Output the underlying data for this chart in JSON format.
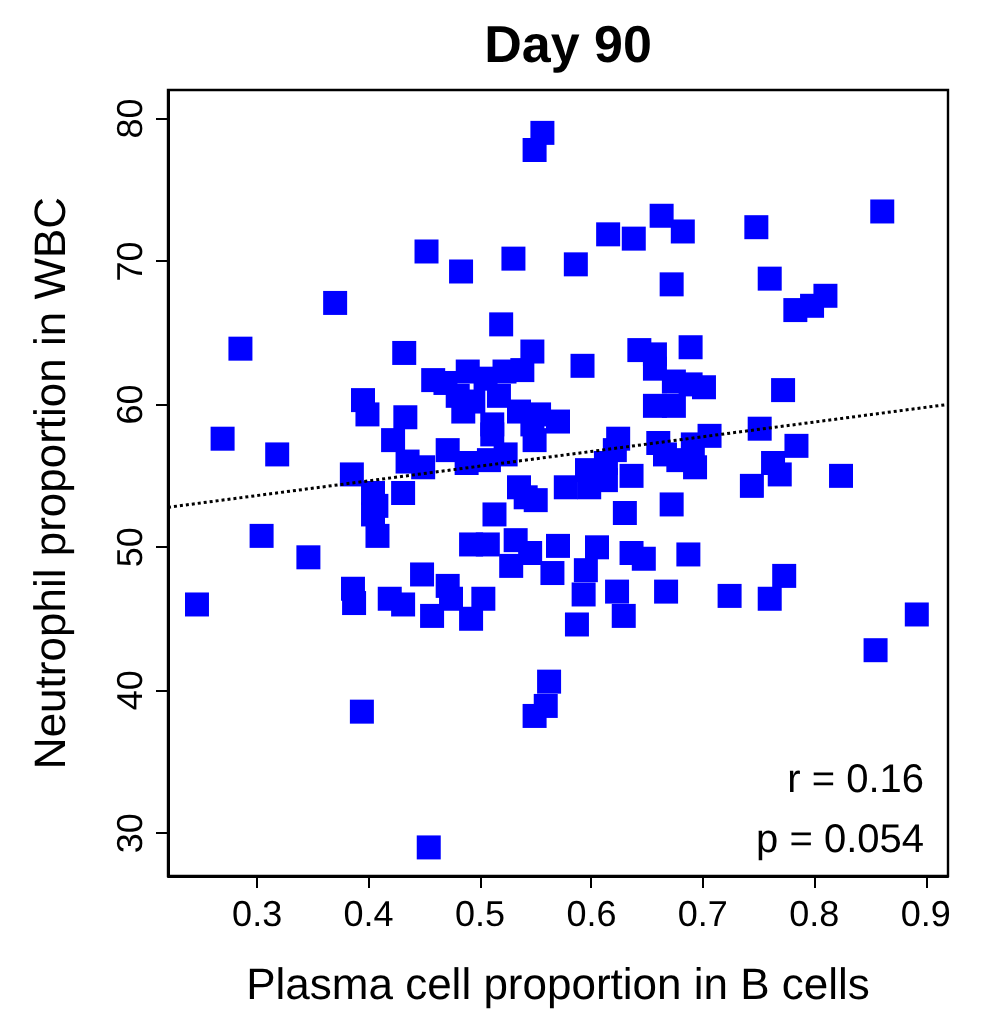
{
  "chart_data": {
    "type": "scatter",
    "title": "Day 90",
    "xlabel": "Plasma cell proportion in B cells",
    "ylabel": "Neutrophil proportion in WBC",
    "xlim": [
      0.22,
      0.92
    ],
    "xticks": [
      0.3,
      0.4,
      0.5,
      0.6,
      0.7,
      0.8,
      0.9
    ],
    "ylim": [
      27,
      82
    ],
    "yticks": [
      30,
      40,
      50,
      60,
      70,
      80
    ],
    "annotations": [
      "r = 0.16",
      "p = 0.054"
    ],
    "series": [
      {
        "marker": "square",
        "color": "#0000ff",
        "x": [
          0.246,
          0.269,
          0.285,
          0.304,
          0.318,
          0.346,
          0.37,
          0.385,
          0.386,
          0.387,
          0.394,
          0.395,
          0.399,
          0.404,
          0.407,
          0.404,
          0.408,
          0.419,
          0.422,
          0.431,
          0.431,
          0.432,
          0.433,
          0.435,
          0.448,
          0.449,
          0.452,
          0.454,
          0.457,
          0.458,
          0.469,
          0.471,
          0.471,
          0.474,
          0.48,
          0.483,
          0.485,
          0.488,
          0.489,
          0.492,
          0.492,
          0.494,
          0.503,
          0.505,
          0.507,
          0.508,
          0.511,
          0.511,
          0.513,
          0.517,
          0.519,
          0.522,
          0.523,
          0.528,
          0.53,
          0.532,
          0.535,
          0.535,
          0.538,
          0.541,
          0.545,
          0.547,
          0.547,
          0.549,
          0.549,
          0.549,
          0.55,
          0.553,
          0.556,
          0.559,
          0.562,
          0.565,
          0.57,
          0.57,
          0.577,
          0.586,
          0.587,
          0.592,
          0.593,
          0.595,
          0.596,
          0.598,
          0.605,
          0.613,
          0.613,
          0.615,
          0.621,
          0.623,
          0.624,
          0.629,
          0.63,
          0.636,
          0.636,
          0.638,
          0.643,
          0.647,
          0.657,
          0.657,
          0.657,
          0.66,
          0.663,
          0.666,
          0.667,
          0.672,
          0.672,
          0.674,
          0.674,
          0.678,
          0.682,
          0.687,
          0.689,
          0.689,
          0.691,
          0.693,
          0.701,
          0.706,
          0.724,
          0.744,
          0.748,
          0.751,
          0.76,
          0.76,
          0.763,
          0.769,
          0.772,
          0.773,
          0.783,
          0.784,
          0.798,
          0.81,
          0.824,
          0.855,
          0.861,
          0.892
        ],
        "values": [
          46.0,
          57.6,
          63.9,
          50.8,
          56.5,
          49.3,
          67.1,
          55.1,
          47.1,
          46.1,
          38.5,
          60.3,
          59.3,
          53.8,
          52.9,
          52.3,
          50.8,
          46.4,
          57.5,
          53.8,
          46.0,
          63.6,
          59.1,
          56.0,
          48.1,
          55.6,
          70.7,
          29.0,
          45.2,
          61.7,
          61.5,
          47.3,
          56.8,
          46.4,
          60.6,
          69.3,
          59.5,
          55.9,
          62.3,
          50.2,
          45.0,
          60.2,
          46.4,
          61.8,
          50.2,
          56.1,
          58.6,
          57.9,
          52.3,
          60.6,
          65.6,
          62.3,
          56.5,
          48.7,
          70.2,
          50.5,
          59.5,
          54.2,
          62.4,
          53.5,
          49.6,
          63.7,
          58.6,
          77.8,
          57.5,
          38.2,
          53.3,
          59.3,
          79.0,
          38.9,
          40.6,
          48.2,
          50.1,
          58.8,
          54.2,
          69.8,
          44.6,
          62.7,
          46.7,
          48.4,
          55.4,
          54.2,
          50.0,
          54.7,
          55.9,
          71.9,
          56.8,
          46.9,
          57.6,
          45.2,
          52.4,
          55.0,
          49.6,
          71.6,
          63.8,
          49.2,
          63.5,
          62.5,
          59.9,
          57.3,
          73.2,
          56.5,
          46.9,
          68.4,
          53.0,
          61.6,
          59.9,
          56.1,
          72.1,
          49.5,
          64.0,
          61.4,
          57.2,
          55.6,
          61.2,
          57.8,
          46.6,
          54.3,
          72.4,
          58.3,
          68.8,
          46.4,
          55.9,
          55.1,
          61.0,
          48.0,
          66.6,
          57.1,
          66.9,
          67.6,
          55.0,
          42.8,
          73.5,
          45.3
        ]
      },
      {
        "type": "line",
        "marker": "none",
        "color": "#000000",
        "line_style": "dotted",
        "x": [
          0.22,
          0.92
        ],
        "values": [
          52.8,
          60.0
        ]
      }
    ]
  }
}
